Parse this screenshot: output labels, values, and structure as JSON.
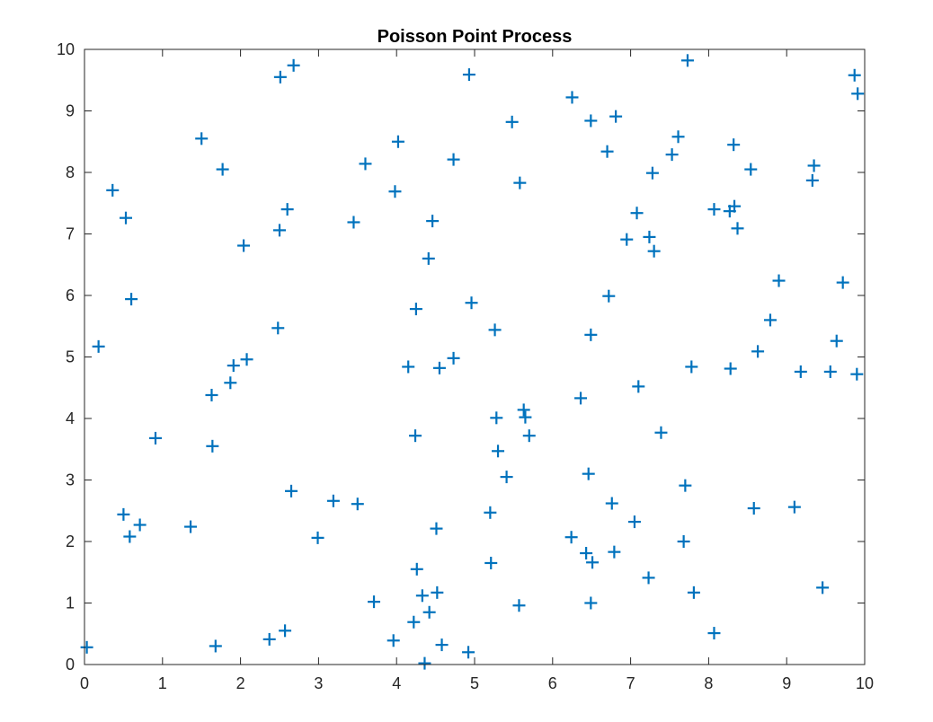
{
  "chart_data": {
    "type": "scatter",
    "title": "Poisson Point Process",
    "xlabel": "",
    "ylabel": "",
    "xlim": [
      0,
      10
    ],
    "ylim": [
      0,
      10
    ],
    "xticks": [
      0,
      1,
      2,
      3,
      4,
      5,
      6,
      7,
      8,
      9,
      10
    ],
    "yticks": [
      0,
      1,
      2,
      3,
      4,
      5,
      6,
      7,
      8,
      9,
      10
    ],
    "grid": false,
    "box": true,
    "marker": "+",
    "marker_color": "#0072BD",
    "series": [
      {
        "points": [
          [
            0.03,
            0.28
          ],
          [
            0.18,
            5.17
          ],
          [
            0.36,
            7.71
          ],
          [
            0.5,
            2.44
          ],
          [
            0.53,
            7.26
          ],
          [
            0.58,
            2.08
          ],
          [
            0.6,
            5.94
          ],
          [
            0.71,
            2.27
          ],
          [
            0.91,
            3.68
          ],
          [
            1.36,
            2.24
          ],
          [
            1.5,
            8.55
          ],
          [
            1.63,
            4.38
          ],
          [
            1.64,
            3.55
          ],
          [
            1.68,
            0.3
          ],
          [
            1.77,
            8.05
          ],
          [
            1.87,
            4.58
          ],
          [
            1.91,
            4.86
          ],
          [
            2.04,
            6.81
          ],
          [
            2.08,
            4.96
          ],
          [
            2.37,
            0.41
          ],
          [
            2.48,
            5.47
          ],
          [
            2.5,
            7.06
          ],
          [
            2.51,
            9.55
          ],
          [
            2.57,
            0.55
          ],
          [
            2.6,
            7.4
          ],
          [
            2.65,
            2.82
          ],
          [
            2.68,
            9.74
          ],
          [
            2.99,
            2.06
          ],
          [
            3.19,
            2.66
          ],
          [
            3.45,
            7.19
          ],
          [
            3.5,
            2.61
          ],
          [
            3.6,
            8.14
          ],
          [
            3.71,
            1.02
          ],
          [
            3.96,
            0.39
          ],
          [
            3.98,
            7.69
          ],
          [
            4.02,
            8.5
          ],
          [
            4.15,
            4.84
          ],
          [
            4.22,
            0.69
          ],
          [
            4.24,
            3.72
          ],
          [
            4.25,
            5.78
          ],
          [
            4.26,
            1.55
          ],
          [
            4.33,
            1.12
          ],
          [
            4.36,
            0.02
          ],
          [
            4.41,
            6.6
          ],
          [
            4.42,
            0.85
          ],
          [
            4.46,
            7.21
          ],
          [
            4.51,
            2.21
          ],
          [
            4.52,
            1.17
          ],
          [
            4.55,
            4.82
          ],
          [
            4.58,
            0.32
          ],
          [
            4.73,
            8.21
          ],
          [
            4.73,
            4.98
          ],
          [
            4.92,
            0.2
          ],
          [
            4.93,
            9.59
          ],
          [
            4.96,
            5.88
          ],
          [
            5.2,
            2.47
          ],
          [
            5.21,
            1.65
          ],
          [
            5.26,
            5.44
          ],
          [
            5.28,
            4.01
          ],
          [
            5.3,
            3.47
          ],
          [
            5.41,
            3.05
          ],
          [
            5.48,
            8.82
          ],
          [
            5.57,
            0.96
          ],
          [
            5.58,
            7.83
          ],
          [
            5.63,
            4.14
          ],
          [
            5.65,
            4.02
          ],
          [
            5.7,
            3.72
          ],
          [
            6.24,
            2.07
          ],
          [
            6.25,
            9.22
          ],
          [
            6.36,
            4.33
          ],
          [
            6.43,
            1.81
          ],
          [
            6.46,
            3.1
          ],
          [
            6.49,
            5.36
          ],
          [
            6.49,
            8.84
          ],
          [
            6.49,
            1.0
          ],
          [
            6.51,
            1.66
          ],
          [
            6.7,
            8.34
          ],
          [
            6.72,
            5.99
          ],
          [
            6.76,
            2.62
          ],
          [
            6.79,
            1.83
          ],
          [
            6.81,
            8.91
          ],
          [
            6.95,
            6.91
          ],
          [
            7.05,
            2.32
          ],
          [
            7.08,
            7.34
          ],
          [
            7.1,
            4.52
          ],
          [
            7.23,
            1.41
          ],
          [
            7.24,
            6.95
          ],
          [
            7.28,
            7.99
          ],
          [
            7.3,
            6.72
          ],
          [
            7.39,
            3.77
          ],
          [
            7.53,
            8.29
          ],
          [
            7.61,
            8.58
          ],
          [
            7.68,
            2.0
          ],
          [
            7.7,
            2.91
          ],
          [
            7.73,
            9.82
          ],
          [
            7.78,
            4.84
          ],
          [
            7.81,
            1.17
          ],
          [
            8.07,
            0.51
          ],
          [
            8.07,
            7.4
          ],
          [
            8.27,
            7.37
          ],
          [
            8.28,
            4.81
          ],
          [
            8.32,
            8.45
          ],
          [
            8.33,
            7.45
          ],
          [
            8.37,
            7.09
          ],
          [
            8.54,
            8.05
          ],
          [
            8.58,
            2.54
          ],
          [
            8.63,
            5.09
          ],
          [
            8.79,
            5.6
          ],
          [
            8.9,
            6.24
          ],
          [
            9.1,
            2.56
          ],
          [
            9.18,
            4.76
          ],
          [
            9.33,
            7.87
          ],
          [
            9.35,
            8.11
          ],
          [
            9.46,
            1.25
          ],
          [
            9.56,
            4.76
          ],
          [
            9.64,
            5.26
          ],
          [
            9.72,
            6.21
          ],
          [
            9.87,
            9.58
          ],
          [
            9.9,
            4.72
          ],
          [
            9.91,
            9.28
          ]
        ]
      }
    ]
  }
}
